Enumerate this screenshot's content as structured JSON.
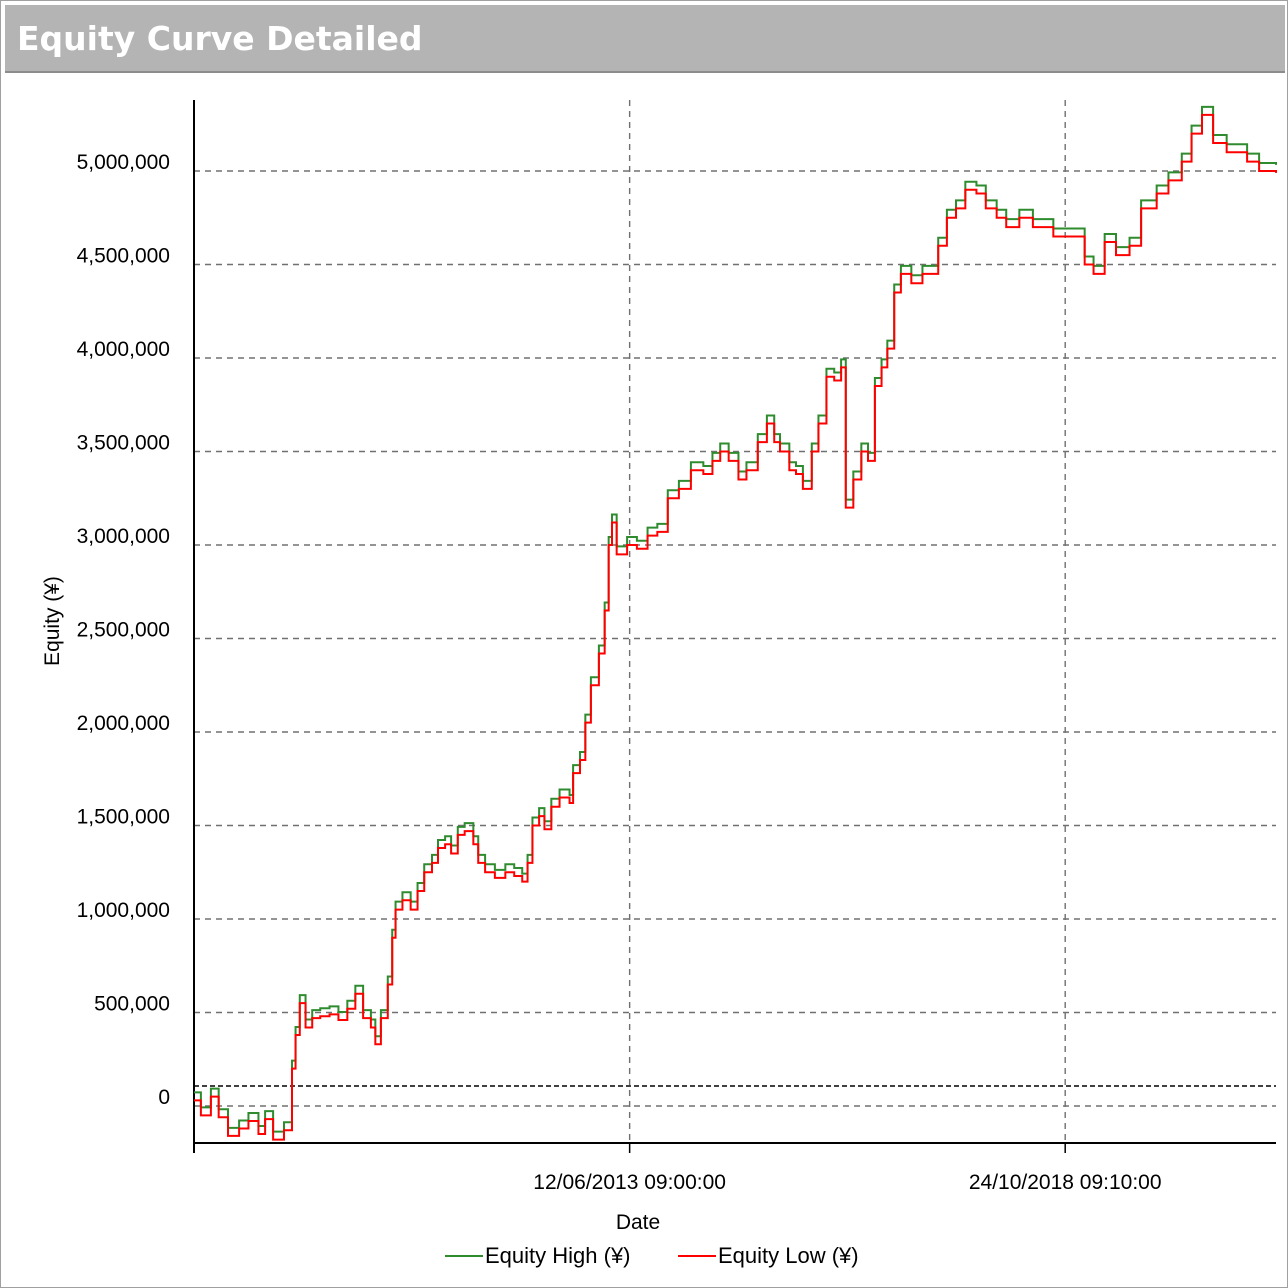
{
  "window": {
    "title": "Equity Curve Detailed"
  },
  "colors": {
    "high": "#2e8b2e",
    "low": "#ff0000",
    "grid": "#707070",
    "title_bg": "#b4b4b4"
  },
  "chart_data": {
    "type": "line",
    "title": "Equity Curve Detailed",
    "xlabel": "Date",
    "ylabel": "Equity (¥)",
    "ylim": [
      -200000,
      5380000
    ],
    "yticks": [
      0,
      500000,
      1000000,
      1500000,
      2000000,
      2500000,
      3000000,
      3500000,
      4000000,
      4500000,
      5000000
    ],
    "ytick_labels": [
      "0",
      "500,000",
      "1,000,000",
      "1,500,000",
      "2,000,000",
      "2,500,000",
      "3,000,000",
      "3,500,000",
      "4,000,000",
      "4,500,000",
      "5,000,000"
    ],
    "xlim": [
      "2008-01-30",
      "2021-05-30"
    ],
    "xticks": [
      "2013-06-12T09:00",
      "2018-10-24T09:10"
    ],
    "xtick_labels": [
      "12/06/2013 09:00:00",
      "24/10/2018 09:10:00"
    ],
    "grid": true,
    "legend_position": "bottom",
    "series": [
      {
        "name": "Equity High (¥)"
      },
      {
        "name": "Equity Low (¥)"
      }
    ],
    "points": [
      [
        "2008-01-30",
        30000
      ],
      [
        "2008-03-01",
        -50000
      ],
      [
        "2008-04-15",
        50000
      ],
      [
        "2008-05-20",
        -60000
      ],
      [
        "2008-07-01",
        -160000
      ],
      [
        "2008-08-20",
        -120000
      ],
      [
        "2008-10-01",
        -80000
      ],
      [
        "2008-11-15",
        -150000
      ],
      [
        "2008-12-15",
        -70000
      ],
      [
        "2009-01-20",
        -180000
      ],
      [
        "2009-03-10",
        -130000
      ],
      [
        "2009-04-15",
        200000
      ],
      [
        "2009-05-01",
        380000
      ],
      [
        "2009-05-20",
        550000
      ],
      [
        "2009-06-15",
        420000
      ],
      [
        "2009-07-15",
        470000
      ],
      [
        "2009-08-20",
        480000
      ],
      [
        "2009-10-01",
        490000
      ],
      [
        "2009-11-10",
        460000
      ],
      [
        "2009-12-20",
        520000
      ],
      [
        "2010-01-25",
        600000
      ],
      [
        "2010-03-01",
        470000
      ],
      [
        "2010-04-05",
        420000
      ],
      [
        "2010-04-25",
        330000
      ],
      [
        "2010-05-20",
        470000
      ],
      [
        "2010-06-20",
        650000
      ],
      [
        "2010-07-10",
        900000
      ],
      [
        "2010-07-25",
        1050000
      ],
      [
        "2010-08-25",
        1100000
      ],
      [
        "2010-10-01",
        1050000
      ],
      [
        "2010-11-01",
        1150000
      ],
      [
        "2010-12-01",
        1250000
      ],
      [
        "2011-01-05",
        1300000
      ],
      [
        "2011-02-01",
        1380000
      ],
      [
        "2011-03-05",
        1400000
      ],
      [
        "2011-04-01",
        1350000
      ],
      [
        "2011-05-01",
        1450000
      ],
      [
        "2011-06-01",
        1470000
      ],
      [
        "2011-07-10",
        1400000
      ],
      [
        "2011-08-01",
        1300000
      ],
      [
        "2011-09-01",
        1250000
      ],
      [
        "2011-10-15",
        1220000
      ],
      [
        "2011-12-01",
        1250000
      ],
      [
        "2012-01-10",
        1230000
      ],
      [
        "2012-02-15",
        1200000
      ],
      [
        "2012-03-10",
        1300000
      ],
      [
        "2012-04-01",
        1500000
      ],
      [
        "2012-05-01",
        1550000
      ],
      [
        "2012-05-25",
        1480000
      ],
      [
        "2012-06-25",
        1600000
      ],
      [
        "2012-08-01",
        1650000
      ],
      [
        "2012-09-15",
        1620000
      ],
      [
        "2012-10-01",
        1780000
      ],
      [
        "2012-11-01",
        1850000
      ],
      [
        "2012-11-25",
        2050000
      ],
      [
        "2012-12-20",
        2250000
      ],
      [
        "2013-01-25",
        2420000
      ],
      [
        "2013-02-20",
        2650000
      ],
      [
        "2013-03-10",
        3000000
      ],
      [
        "2013-03-25",
        3120000
      ],
      [
        "2013-04-15",
        2950000
      ],
      [
        "2013-06-01",
        3000000
      ],
      [
        "2013-07-15",
        2980000
      ],
      [
        "2013-09-01",
        3050000
      ],
      [
        "2013-10-15",
        3070000
      ],
      [
        "2013-12-01",
        3250000
      ],
      [
        "2014-01-20",
        3300000
      ],
      [
        "2014-03-15",
        3400000
      ],
      [
        "2014-05-10",
        3380000
      ],
      [
        "2014-06-20",
        3450000
      ],
      [
        "2014-07-25",
        3500000
      ],
      [
        "2014-09-01",
        3450000
      ],
      [
        "2014-10-15",
        3350000
      ],
      [
        "2014-11-20",
        3400000
      ],
      [
        "2015-01-10",
        3550000
      ],
      [
        "2015-02-20",
        3650000
      ],
      [
        "2015-03-25",
        3550000
      ],
      [
        "2015-04-20",
        3500000
      ],
      [
        "2015-06-01",
        3400000
      ],
      [
        "2015-07-01",
        3380000
      ],
      [
        "2015-08-01",
        3300000
      ],
      [
        "2015-09-10",
        3500000
      ],
      [
        "2015-10-10",
        3650000
      ],
      [
        "2015-11-15",
        3900000
      ],
      [
        "2015-12-20",
        3880000
      ],
      [
        "2016-01-20",
        3950000
      ],
      [
        "2016-02-10",
        3200000
      ],
      [
        "2016-03-15",
        3350000
      ],
      [
        "2016-04-20",
        3500000
      ],
      [
        "2016-05-20",
        3450000
      ],
      [
        "2016-06-20",
        3850000
      ],
      [
        "2016-07-20",
        3950000
      ],
      [
        "2016-08-15",
        4050000
      ],
      [
        "2016-09-15",
        4350000
      ],
      [
        "2016-10-15",
        4450000
      ],
      [
        "2016-12-01",
        4400000
      ],
      [
        "2017-01-20",
        4450000
      ],
      [
        "2017-03-01",
        4450000
      ],
      [
        "2017-04-01",
        4600000
      ],
      [
        "2017-05-10",
        4750000
      ],
      [
        "2017-06-20",
        4800000
      ],
      [
        "2017-08-01",
        4900000
      ],
      [
        "2017-09-20",
        4880000
      ],
      [
        "2017-11-01",
        4800000
      ],
      [
        "2017-12-20",
        4750000
      ],
      [
        "2018-02-01",
        4700000
      ],
      [
        "2018-04-01",
        4750000
      ],
      [
        "2018-06-01",
        4700000
      ],
      [
        "2018-09-01",
        4650000
      ],
      [
        "2018-11-20",
        4650000
      ],
      [
        "2019-01-20",
        4500000
      ],
      [
        "2019-03-01",
        4450000
      ],
      [
        "2019-04-20",
        4620000
      ],
      [
        "2019-06-10",
        4550000
      ],
      [
        "2019-08-10",
        4600000
      ],
      [
        "2019-10-01",
        4800000
      ],
      [
        "2019-12-10",
        4880000
      ],
      [
        "2020-02-01",
        4950000
      ],
      [
        "2020-04-01",
        5050000
      ],
      [
        "2020-05-15",
        5200000
      ],
      [
        "2020-07-01",
        5300000
      ],
      [
        "2020-08-20",
        5150000
      ],
      [
        "2020-10-20",
        5100000
      ],
      [
        "2021-01-20",
        5050000
      ],
      [
        "2021-03-15",
        5000000
      ],
      [
        "2021-05-30",
        4990000
      ]
    ]
  }
}
